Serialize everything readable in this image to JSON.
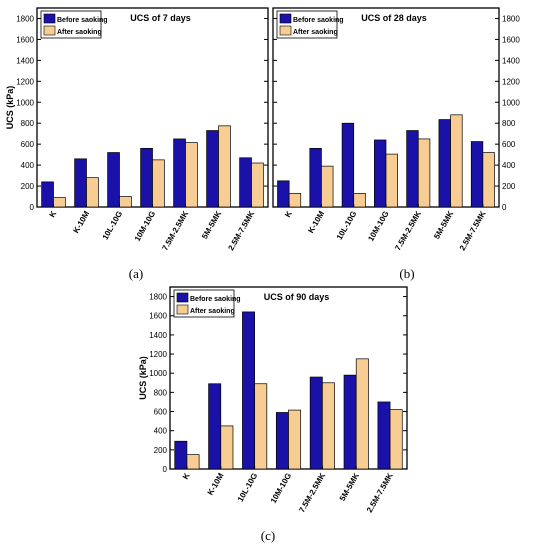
{
  "colors": {
    "before": "#1a12a8",
    "after": "#f8cd93",
    "bar_stroke": "#000000",
    "frame": "#000000"
  },
  "series_names": [
    "Before saoking",
    "After saoking"
  ],
  "chart_data": [
    {
      "type": "bar",
      "title": "UCS of 7 days",
      "panel_label": "(a)",
      "ylabel": "UCS (kPa)",
      "xlabel": "",
      "categories": [
        "K",
        "K-10M",
        "10L-10G",
        "10M-10G",
        "7.5M-2.5MK",
        "5M-5MK",
        "2.5M-7.5MK"
      ],
      "series": [
        {
          "name": "Before saoking",
          "values": [
            240,
            460,
            520,
            560,
            650,
            730,
            470
          ]
        },
        {
          "name": "After saoking",
          "values": [
            90,
            280,
            100,
            450,
            615,
            775,
            420
          ]
        }
      ],
      "ylim": [
        0,
        1900
      ],
      "yticks": [
        0,
        200,
        400,
        600,
        800,
        1000,
        1200,
        1400,
        1600,
        1800
      ],
      "legend": "top-left",
      "grid": false
    },
    {
      "type": "bar",
      "title": "UCS of 28 days",
      "panel_label": "(b)",
      "ylabel": "",
      "xlabel": "",
      "categories": [
        "K",
        "K-10M",
        "10L-10G",
        "10M-10G",
        "7.5M-2.5MK",
        "5M-5MK",
        "2.5M-7.5MK"
      ],
      "series": [
        {
          "name": "Before saoking",
          "values": [
            250,
            560,
            800,
            640,
            730,
            835,
            625
          ]
        },
        {
          "name": "After saoking",
          "values": [
            130,
            390,
            130,
            505,
            650,
            880,
            520
          ]
        }
      ],
      "ylim": [
        0,
        1900
      ],
      "yticks": [
        0,
        200,
        400,
        600,
        800,
        1000,
        1200,
        1400,
        1600,
        1800
      ],
      "legend": "top-left",
      "grid": false
    },
    {
      "type": "bar",
      "title": "UCS of 90 days",
      "panel_label": "(c)",
      "ylabel": "UCS (kPa)",
      "xlabel": "",
      "categories": [
        "K",
        "K-10M",
        "10L-10G",
        "10M-10G",
        "7.5M-2.5MK",
        "5M-5MK",
        "2.5M-7.5MK"
      ],
      "series": [
        {
          "name": "Before saoking",
          "values": [
            290,
            890,
            1640,
            590,
            960,
            980,
            700
          ]
        },
        {
          "name": "After saoking",
          "values": [
            150,
            450,
            890,
            615,
            900,
            1150,
            620
          ]
        }
      ],
      "ylim": [
        0,
        1900
      ],
      "yticks": [
        0,
        200,
        400,
        600,
        800,
        1000,
        1200,
        1400,
        1600,
        1800
      ],
      "legend": "top-left",
      "grid": false
    }
  ]
}
